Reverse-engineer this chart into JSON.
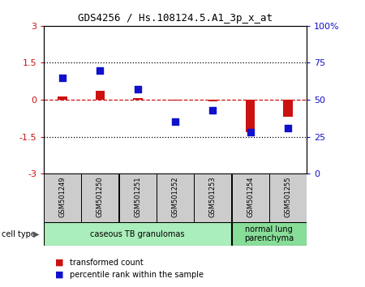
{
  "title": "GDS4256 / Hs.108124.5.A1_3p_x_at",
  "samples": [
    "GSM501249",
    "GSM501250",
    "GSM501251",
    "GSM501252",
    "GSM501253",
    "GSM501254",
    "GSM501255"
  ],
  "transformed_count": [
    0.12,
    0.35,
    0.08,
    -0.04,
    -0.08,
    -1.3,
    -0.7
  ],
  "percentile_rank": [
    65,
    70,
    57,
    35,
    43,
    28,
    31
  ],
  "ylim_left": [
    -3,
    3
  ],
  "ylim_right": [
    0,
    100
  ],
  "yticks_left": [
    -3,
    -1.5,
    0,
    1.5,
    3
  ],
  "yticks_right": [
    0,
    25,
    50,
    75,
    100
  ],
  "ytick_labels_right": [
    "0",
    "25",
    "50",
    "75",
    "100%"
  ],
  "hlines": [
    1.5,
    -1.5
  ],
  "bar_color": "#cc1111",
  "dot_color": "#1111cc",
  "cell_type_groups": [
    {
      "label": "caseous TB granulomas",
      "samples": [
        0,
        1,
        2,
        3,
        4
      ],
      "color": "#aaeebb"
    },
    {
      "label": "normal lung\nparenchyma",
      "samples": [
        5,
        6
      ],
      "color": "#88dd99"
    }
  ],
  "cell_type_label": "cell type",
  "legend_items": [
    {
      "color": "#cc1111",
      "label": "transformed count"
    },
    {
      "color": "#1111cc",
      "label": "percentile rank within the sample"
    }
  ],
  "tick_area_color": "#cccccc",
  "bar_width": 0.25,
  "dot_size": 40,
  "background_color": "#ffffff"
}
